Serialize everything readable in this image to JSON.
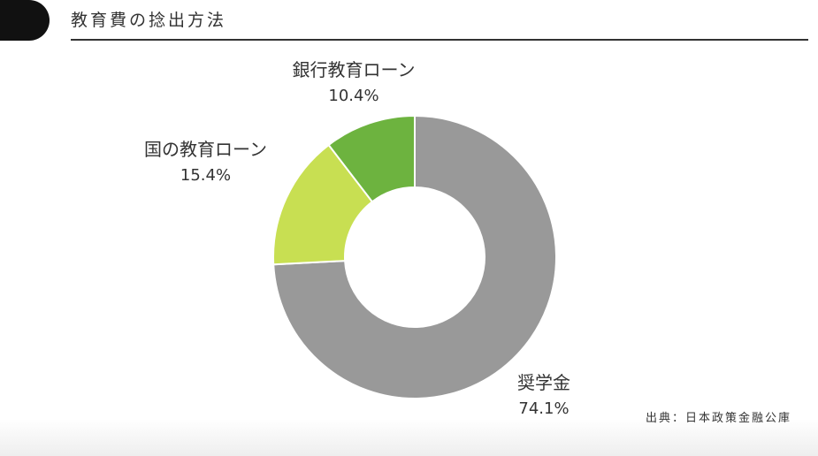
{
  "header": {
    "title": "教育費の捻出方法"
  },
  "chart_data": {
    "type": "pie",
    "donut": true,
    "title": "教育費の捻出方法",
    "slices": [
      {
        "label": "奨学金",
        "value": 74.1,
        "value_label": "74.1%",
        "color": "#999999"
      },
      {
        "label": "国の教育ローン",
        "value": 15.4,
        "value_label": "15.4%",
        "color": "#c8df52"
      },
      {
        "label": "銀行教育ローン",
        "value": 10.4,
        "value_label": "10.4%",
        "color": "#6db33f"
      }
    ]
  },
  "source": "出典：日本政策金融公庫"
}
